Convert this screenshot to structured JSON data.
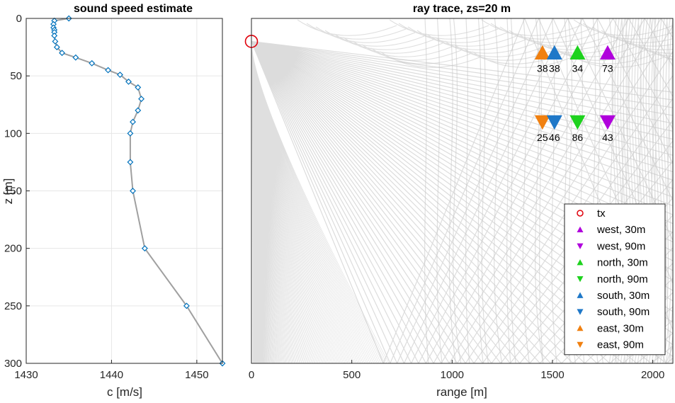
{
  "chart_data": [
    {
      "type": "line",
      "title": "sound speed estimate",
      "xlabel": "c [m/s]",
      "ylabel": "z [m]",
      "xlim": [
        1430,
        1453
      ],
      "ylim": [
        0,
        300
      ],
      "y_reversed": true,
      "grid": true,
      "xticks": [
        "1430",
        "1440",
        "1450"
      ],
      "yticks": [
        "0",
        "50",
        "100",
        "150",
        "200",
        "250",
        "300"
      ],
      "line_color": "#a0a0a0",
      "marker_color": "#0072bd",
      "marker": "diamond",
      "points": [
        {
          "c": 1435.0,
          "z": 0
        },
        {
          "c": 1433.3,
          "z": 2
        },
        {
          "c": 1433.2,
          "z": 5
        },
        {
          "c": 1433.2,
          "z": 8
        },
        {
          "c": 1433.3,
          "z": 10
        },
        {
          "c": 1433.3,
          "z": 12
        },
        {
          "c": 1433.3,
          "z": 15
        },
        {
          "c": 1433.4,
          "z": 20
        },
        {
          "c": 1433.6,
          "z": 25
        },
        {
          "c": 1434.2,
          "z": 30
        },
        {
          "c": 1435.8,
          "z": 34
        },
        {
          "c": 1437.7,
          "z": 39
        },
        {
          "c": 1439.6,
          "z": 45
        },
        {
          "c": 1441.0,
          "z": 49
        },
        {
          "c": 1442.0,
          "z": 55
        },
        {
          "c": 1443.1,
          "z": 60
        },
        {
          "c": 1443.5,
          "z": 70
        },
        {
          "c": 1443.1,
          "z": 80
        },
        {
          "c": 1442.5,
          "z": 90
        },
        {
          "c": 1442.2,
          "z": 100
        },
        {
          "c": 1442.2,
          "z": 125
        },
        {
          "c": 1442.5,
          "z": 150
        },
        {
          "c": 1443.9,
          "z": 200
        },
        {
          "c": 1448.8,
          "z": 250
        },
        {
          "c": 1453.0,
          "z": 300
        }
      ]
    },
    {
      "type": "scatter",
      "title": "ray trace, zs=20 m",
      "xlabel": "range [m]",
      "ylabel": "",
      "xlim": [
        0,
        2100
      ],
      "ylim": [
        0,
        300
      ],
      "y_reversed": true,
      "xticks": [
        "0",
        "500",
        "1000",
        "1500",
        "2000"
      ],
      "background": "grey ray paths from source",
      "ray_color": "#c4c4c4",
      "source": {
        "name": "tx",
        "range": 0,
        "depth": 20,
        "color": "#e0000b"
      },
      "receivers": [
        {
          "label": "38",
          "range": 1450,
          "depth": 30,
          "shape": "up",
          "color": "#f08010"
        },
        {
          "label": "38",
          "range": 1510,
          "depth": 30,
          "shape": "up",
          "color": "#1f78c8"
        },
        {
          "label": "34",
          "range": 1625,
          "depth": 30,
          "shape": "up",
          "color": "#1ed21e"
        },
        {
          "label": "73",
          "range": 1775,
          "depth": 30,
          "shape": "up",
          "color": "#b000dc"
        },
        {
          "label": "25",
          "range": 1450,
          "depth": 90,
          "shape": "down",
          "color": "#f08010"
        },
        {
          "label": "46",
          "range": 1510,
          "depth": 90,
          "shape": "down",
          "color": "#1f78c8"
        },
        {
          "label": "86",
          "range": 1625,
          "depth": 90,
          "shape": "down",
          "color": "#1ed21e"
        },
        {
          "label": "43",
          "range": 1775,
          "depth": 90,
          "shape": "down",
          "color": "#b000dc"
        }
      ],
      "legend": {
        "placement": "bottom-right",
        "entries": [
          {
            "label": "tx",
            "shape": "circle",
            "color": "#e0000b"
          },
          {
            "label": "west, 30m",
            "shape": "up",
            "color": "#b000dc"
          },
          {
            "label": "west, 90m",
            "shape": "down",
            "color": "#b000dc"
          },
          {
            "label": "north, 30m",
            "shape": "up",
            "color": "#1ed21e"
          },
          {
            "label": "north, 90m",
            "shape": "down",
            "color": "#1ed21e"
          },
          {
            "label": "south, 30m",
            "shape": "up",
            "color": "#1f78c8"
          },
          {
            "label": "south, 90m",
            "shape": "down",
            "color": "#1f78c8"
          },
          {
            "label": "east, 30m",
            "shape": "up",
            "color": "#f08010"
          },
          {
            "label": "east, 90m",
            "shape": "down",
            "color": "#f08010"
          }
        ]
      }
    }
  ]
}
